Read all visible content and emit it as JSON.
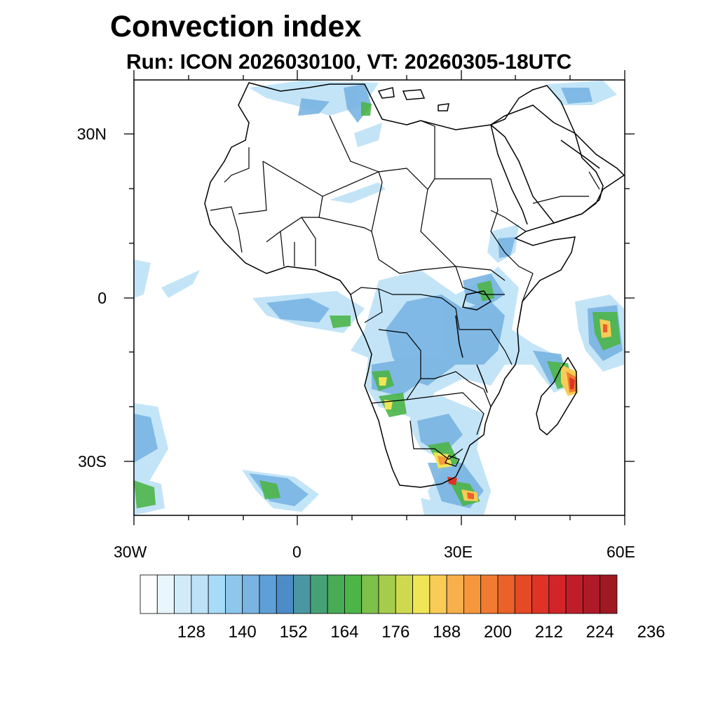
{
  "title": "Convection index",
  "subtitle": "Run: ICON 2026030100,  VT: 20260305-18UTC",
  "axes": {
    "lat_labels": [
      "30N",
      "0",
      "30S"
    ],
    "lon_labels": [
      "30W",
      "0",
      "30E",
      "60E"
    ]
  },
  "colorbar": {
    "labels": [
      "128",
      "140",
      "152",
      "164",
      "176",
      "188",
      "200",
      "212",
      "224",
      "236"
    ],
    "colors": [
      "#ffffff",
      "#eaf6fd",
      "#d2ebf9",
      "#bde2f7",
      "#a6dcf7",
      "#8dc8ec",
      "#79b4e2",
      "#5d9fd6",
      "#4e8cc8",
      "#4a97a3",
      "#47a177",
      "#4aab56",
      "#4db548",
      "#7dc04a",
      "#a6cc4d",
      "#cfd94f",
      "#efe556",
      "#f8cc56",
      "#f8b04c",
      "#f6973c",
      "#f17b31",
      "#eb612a",
      "#e34a25",
      "#de3326",
      "#d2252a",
      "#c01d2b",
      "#ae1a27",
      "#9e1922"
    ]
  },
  "colors": {
    "outline": "#000000",
    "background": "#ffffff"
  }
}
